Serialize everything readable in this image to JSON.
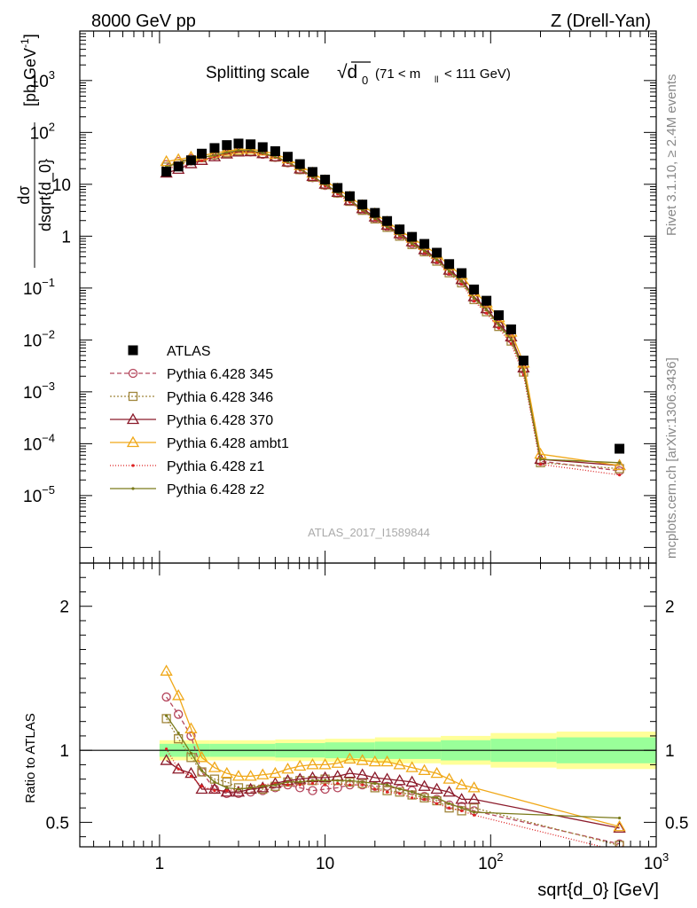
{
  "header": {
    "left": "8000 GeV pp",
    "right": "Z (Drell-Yan)"
  },
  "side_labels": {
    "rivet": "Rivet 3.1.10, ≥ 2.4M events",
    "mcplots": "mcplots.cern.ch [arXiv:1306.3436]"
  },
  "watermark": "ATLAS_2017_I1589844",
  "colors": {
    "ATLAS": "#000000",
    "p345": "#b5475d",
    "p346": "#a0863c",
    "p370": "#8b1a2a",
    "ambt1": "#f0a818",
    "z1": "#dd2222",
    "z2": "#7a7a1a",
    "band_inner": "#99ff99",
    "band_outer": "#ffff99"
  },
  "chart_data": [
    {
      "type": "scatter",
      "title": "Splitting scale",
      "title_symbol": "√d",
      "title_subscript": "0",
      "title_range": "(71 < m",
      "title_range_sub": "ll",
      "title_range_end": "< 111 GeV)",
      "ylabel_top": "dσ",
      "ylabel_bottom": "dsqrt{d_0}",
      "ylabel_unit": "[pb,GeV",
      "ylabel_unit_sup": "-1",
      "ylabel_unit_end": "]",
      "x_log": true,
      "y_log": true,
      "xlim": [
        0.33,
        1000
      ],
      "ylim": [
        5e-07,
        9000
      ],
      "y_ticks": [
        {
          "v": 1e-05,
          "b": "10",
          "e": "−5"
        },
        {
          "v": 0.0001,
          "b": "10",
          "e": "−4"
        },
        {
          "v": 0.001,
          "b": "10",
          "e": "−3"
        },
        {
          "v": 0.01,
          "b": "10",
          "e": "−2"
        },
        {
          "v": 0.1,
          "b": "10",
          "e": "−1"
        },
        {
          "v": 1,
          "b": "1",
          "e": ""
        },
        {
          "v": 10,
          "b": "10",
          "e": ""
        },
        {
          "v": 100,
          "b": "10",
          "e": "2"
        },
        {
          "v": 1000,
          "b": "10",
          "e": "3"
        }
      ],
      "legend": [
        "ATLAS",
        "Pythia 6.428 345",
        "Pythia 6.428 346",
        "Pythia 6.428 370",
        "Pythia 6.428 ambt1",
        "Pythia 6.428 z1",
        "Pythia 6.428 z2"
      ],
      "x": [
        1.1,
        1.3,
        1.55,
        1.8,
        2.15,
        2.55,
        3.0,
        3.55,
        4.2,
        5.0,
        5.95,
        7.05,
        8.4,
        10.0,
        11.9,
        14.1,
        16.8,
        20.0,
        23.7,
        28.2,
        33.5,
        39.8,
        47.3,
        56.2,
        66.8,
        79.4,
        94.4,
        112,
        133,
        158,
        200,
        600
      ],
      "series": [
        {
          "name": "ATLAS",
          "key": "ATLAS",
          "marker": "filled-square",
          "values": [
            17.5,
            22,
            29,
            39,
            50,
            57,
            61,
            59,
            52,
            43.5,
            34,
            24.5,
            17.3,
            12.3,
            8.5,
            5.9,
            4.07,
            2.81,
            1.96,
            1.35,
            0.97,
            0.71,
            0.48,
            0.29,
            0.194,
            0.094,
            0.057,
            0.03,
            0.016,
            0.004,
            8e-05,
            8e-05
          ]
        },
        {
          "name": "Pythia 6.428 345",
          "key": "p345",
          "marker": "open-circle",
          "dash": "5,3",
          "values": [
            24,
            27.5,
            31.5,
            33,
            36,
            39,
            42,
            42,
            38,
            33,
            26,
            19,
            13.4,
            9.5,
            6.7,
            4.7,
            3.18,
            2.2,
            1.53,
            1.05,
            0.72,
            0.52,
            0.35,
            0.21,
            0.136,
            0.065,
            0.038,
            0.02,
            0.0105,
            0.0027,
            4.6e-05,
            3e-05
          ]
        },
        {
          "name": "Pythia 6.428 346",
          "key": "p346",
          "marker": "open-square",
          "dash": "2,2",
          "values": [
            21.5,
            24.5,
            29,
            32.5,
            37,
            40.5,
            44,
            43.5,
            39,
            33.5,
            26.5,
            19.2,
            13.7,
            9.8,
            6.8,
            4.7,
            3.15,
            2.15,
            1.48,
            1.0,
            0.69,
            0.5,
            0.33,
            0.197,
            0.126,
            0.06,
            0.035,
            0.0182,
            0.0095,
            0.0024,
            4.3e-05,
            3.3e-05
          ]
        },
        {
          "name": "Pythia 6.428 370",
          "key": "p370",
          "marker": "open-triangle",
          "dash": "",
          "values": [
            16.5,
            19.5,
            25,
            29,
            34,
            38.5,
            42,
            42.5,
            39,
            34,
            27,
            19.8,
            14.2,
            10.1,
            7.0,
            4.85,
            3.4,
            2.35,
            1.63,
            1.12,
            0.78,
            0.55,
            0.37,
            0.222,
            0.146,
            0.068,
            0.04,
            0.021,
            0.0115,
            0.0029,
            5e-05,
            3.8e-05
          ]
        },
        {
          "name": "Pythia 6.428 ambt1",
          "key": "ambt1",
          "marker": "open-triangle",
          "dash": "",
          "values": [
            27.5,
            30,
            33.5,
            35.5,
            40,
            43.5,
            47,
            47.5,
            44,
            38,
            31,
            23,
            16.5,
            11.8,
            8.2,
            5.7,
            3.9,
            2.7,
            1.88,
            1.3,
            0.92,
            0.66,
            0.45,
            0.27,
            0.178,
            0.085,
            0.052,
            0.027,
            0.0142,
            0.0036,
            6.3e-05,
            3.8e-05
          ]
        },
        {
          "name": "Pythia 6.428 z1",
          "key": "z1",
          "marker": "small-dot",
          "dash": "1,2",
          "values": [
            20.5,
            22,
            24.5,
            28.5,
            34,
            40,
            44.5,
            43.5,
            39,
            33,
            26,
            18.7,
            13.2,
            9.3,
            6.5,
            4.5,
            3.1,
            2.1,
            1.46,
            1.0,
            0.68,
            0.49,
            0.32,
            0.19,
            0.12,
            0.056,
            0.033,
            0.0168,
            0.0085,
            0.0021,
            4e-05,
            2.5e-05
          ]
        },
        {
          "name": "Pythia 6.428 z2",
          "key": "z2",
          "marker": "small-dot",
          "dash": "",
          "values": [
            21.8,
            26,
            32,
            33,
            36,
            41,
            45,
            44.5,
            40,
            34,
            27,
            19.5,
            14,
            10,
            7,
            4.9,
            3.2,
            2.2,
            1.52,
            1.05,
            0.72,
            0.52,
            0.35,
            0.21,
            0.135,
            0.064,
            0.038,
            0.0195,
            0.0102,
            0.0026,
            5e-05,
            4.3e-05
          ]
        }
      ]
    },
    {
      "type": "scatter",
      "title": "",
      "ylabel": "Ratio to ATLAS",
      "xlabel": "sqrt{d_0} [GeV]",
      "x_log": true,
      "xlim": [
        0.33,
        1000
      ],
      "ylim": [
        0.33,
        2.3
      ],
      "y_ticks": [
        {
          "v": 0.5,
          "label": "0.5"
        },
        {
          "v": 1,
          "label": "1"
        },
        {
          "v": 2,
          "label": "2"
        }
      ],
      "x_ticks": [
        {
          "v": 1,
          "b": "1",
          "e": ""
        },
        {
          "v": 10,
          "b": "10",
          "e": ""
        },
        {
          "v": 100,
          "b": "10",
          "e": "2"
        },
        {
          "v": 1000,
          "b": "10",
          "e": "3"
        }
      ],
      "band": {
        "edges": [
          1,
          2,
          5,
          10,
          20,
          50,
          100,
          250,
          1000
        ],
        "inner": [
          0.045,
          0.045,
          0.05,
          0.055,
          0.06,
          0.07,
          0.08,
          0.09,
          0.09
        ],
        "outer": [
          0.07,
          0.07,
          0.075,
          0.08,
          0.09,
          0.1,
          0.12,
          0.13,
          0.17
        ],
        "outer_last": 0.17,
        "inner_last": 0.09
      },
      "x": [
        1.1,
        1.3,
        1.55,
        1.8,
        2.15,
        2.55,
        3.0,
        3.55,
        4.2,
        5.0,
        5.95,
        7.05,
        8.4,
        10.0,
        11.9,
        14.1,
        16.8,
        20.0,
        23.7,
        28.2,
        33.5,
        39.8,
        47.3,
        56.2,
        66.8,
        79.4,
        600
      ],
      "series": [
        {
          "key": "p345",
          "values": [
            1.37,
            1.25,
            1.1,
            0.85,
            0.73,
            0.7,
            0.7,
            0.71,
            0.72,
            0.74,
            0.76,
            0.74,
            0.72,
            0.73,
            0.74,
            0.76,
            0.76,
            0.75,
            0.75,
            0.73,
            0.72,
            0.68,
            0.66,
            0.62,
            0.61,
            0.58,
            0.35
          ]
        },
        {
          "key": "p346",
          "values": [
            1.22,
            1.08,
            0.95,
            0.85,
            0.8,
            0.78,
            0.74,
            0.73,
            0.73,
            0.75,
            0.78,
            0.79,
            0.79,
            0.8,
            0.79,
            0.78,
            0.77,
            0.74,
            0.72,
            0.71,
            0.69,
            0.67,
            0.65,
            0.6,
            0.58,
            0.6,
            0.34
          ]
        },
        {
          "key": "p370",
          "values": [
            0.93,
            0.87,
            0.84,
            0.73,
            0.73,
            0.71,
            0.71,
            0.73,
            0.74,
            0.77,
            0.79,
            0.8,
            0.81,
            0.81,
            0.82,
            0.84,
            0.83,
            0.81,
            0.8,
            0.79,
            0.78,
            0.75,
            0.73,
            0.71,
            0.66,
            0.66,
            0.46
          ]
        },
        {
          "key": "ambt1",
          "values": [
            1.55,
            1.38,
            1.15,
            0.95,
            0.88,
            0.84,
            0.82,
            0.82,
            0.83,
            0.84,
            0.87,
            0.89,
            0.9,
            0.9,
            0.91,
            0.94,
            0.93,
            0.92,
            0.92,
            0.9,
            0.88,
            0.86,
            0.84,
            0.8,
            0.76,
            0.74,
            0.47
          ]
        },
        {
          "key": "z1",
          "values": [
            1.01,
            0.87,
            0.82,
            0.75,
            0.72,
            0.72,
            0.73,
            0.74,
            0.76,
            0.77,
            0.76,
            0.76,
            0.77,
            0.76,
            0.77,
            0.76,
            0.76,
            0.73,
            0.71,
            0.7,
            0.67,
            0.66,
            0.63,
            0.6,
            0.58,
            0.55,
            0.3
          ]
        },
        {
          "key": "z2",
          "values": [
            1.24,
            1.12,
            0.98,
            0.86,
            0.78,
            0.74,
            0.73,
            0.74,
            0.75,
            0.76,
            0.78,
            0.78,
            0.79,
            0.79,
            0.79,
            0.79,
            0.78,
            0.77,
            0.76,
            0.73,
            0.71,
            0.68,
            0.67,
            0.63,
            0.6,
            0.57,
            0.53
          ]
        }
      ]
    }
  ]
}
